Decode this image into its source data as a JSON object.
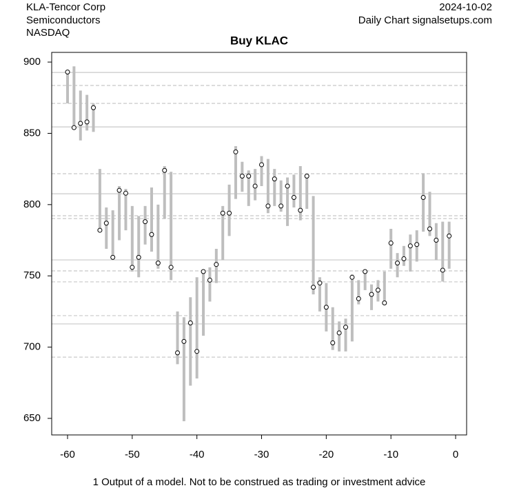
{
  "chart_data": {
    "type": "range",
    "title": "Buy KLAC",
    "company": "KLA-Tencor Corp",
    "sector": "Semiconductors",
    "exchange": "NASDAQ",
    "date": "2024-10-02",
    "source": "Daily Chart signalsetups.com",
    "footnote": "1 Output of a model. Not to be construed as trading or investment advice",
    "x": [
      -60,
      -59,
      -58,
      -57,
      -56,
      -55,
      -54,
      -53,
      -52,
      -51,
      -50,
      -49,
      -48,
      -47,
      -46,
      -45,
      -44,
      -43,
      -42,
      -41,
      -40,
      -39,
      -38,
      -37,
      -36,
      -35,
      -34,
      -33,
      -32,
      -31,
      -30,
      -29,
      -28,
      -27,
      -26,
      -25,
      -24,
      -23,
      -22,
      -21,
      -20,
      -19,
      -18,
      -17,
      -16,
      -15,
      -14,
      -13,
      -12,
      -11,
      -10,
      -9,
      -8,
      -7,
      -6,
      -5,
      -4,
      -3,
      -2,
      -1
    ],
    "high": [
      894,
      897,
      880,
      877,
      871,
      825,
      798,
      796,
      813,
      811,
      799,
      792,
      799,
      812,
      800,
      827,
      823,
      725,
      721,
      735,
      749,
      754,
      756,
      769,
      799,
      814,
      841,
      830,
      824,
      825,
      834,
      832,
      825,
      817,
      819,
      821,
      827,
      821,
      806,
      749,
      745,
      728,
      718,
      720,
      751,
      747,
      754,
      744,
      747,
      753,
      783,
      766,
      771,
      779,
      782,
      822,
      809,
      787,
      788,
      788
    ],
    "low": [
      871,
      854,
      845,
      852,
      851,
      782,
      769,
      763,
      775,
      782,
      753,
      749,
      772,
      767,
      755,
      790,
      747,
      688,
      648,
      673,
      678,
      708,
      732,
      745,
      761,
      778,
      804,
      809,
      799,
      803,
      813,
      794,
      799,
      795,
      785,
      798,
      789,
      797,
      737,
      725,
      711,
      698,
      697,
      697,
      704,
      730,
      740,
      726,
      732,
      732,
      755,
      749,
      757,
      753,
      760,
      781,
      778,
      761,
      746,
      755
    ],
    "close": [
      893,
      854,
      857,
      858,
      868,
      782,
      787,
      763,
      810,
      808,
      756,
      763,
      788,
      779,
      759,
      824,
      756,
      696,
      704,
      717,
      697,
      753,
      747,
      758,
      794,
      794,
      837,
      820,
      820,
      813,
      828,
      799,
      818,
      799,
      813,
      805,
      796,
      820,
      742,
      745,
      728,
      703,
      710,
      714,
      749,
      734,
      753,
      737,
      740,
      731,
      773,
      759,
      762,
      771,
      772,
      805,
      783,
      775,
      754,
      778
    ],
    "bar_color": "#bebebe",
    "point_color": "#000000",
    "solid_levels": [
      892.7,
      854.5,
      807.6,
      761.2,
      716.3
    ],
    "dashed_levels": [
      883.6,
      871,
      821.7,
      792.2,
      790.2,
      753.5,
      745.8,
      722.1,
      693
    ],
    "level_color": "#c8c8c8",
    "xlim": [
      -62.45,
      1.7
    ],
    "ylim": [
      638.4,
      906.8
    ],
    "xticks": [
      -60,
      -50,
      -40,
      -30,
      -20,
      -10,
      0
    ],
    "yticks": [
      650,
      700,
      750,
      800,
      850,
      900
    ]
  }
}
